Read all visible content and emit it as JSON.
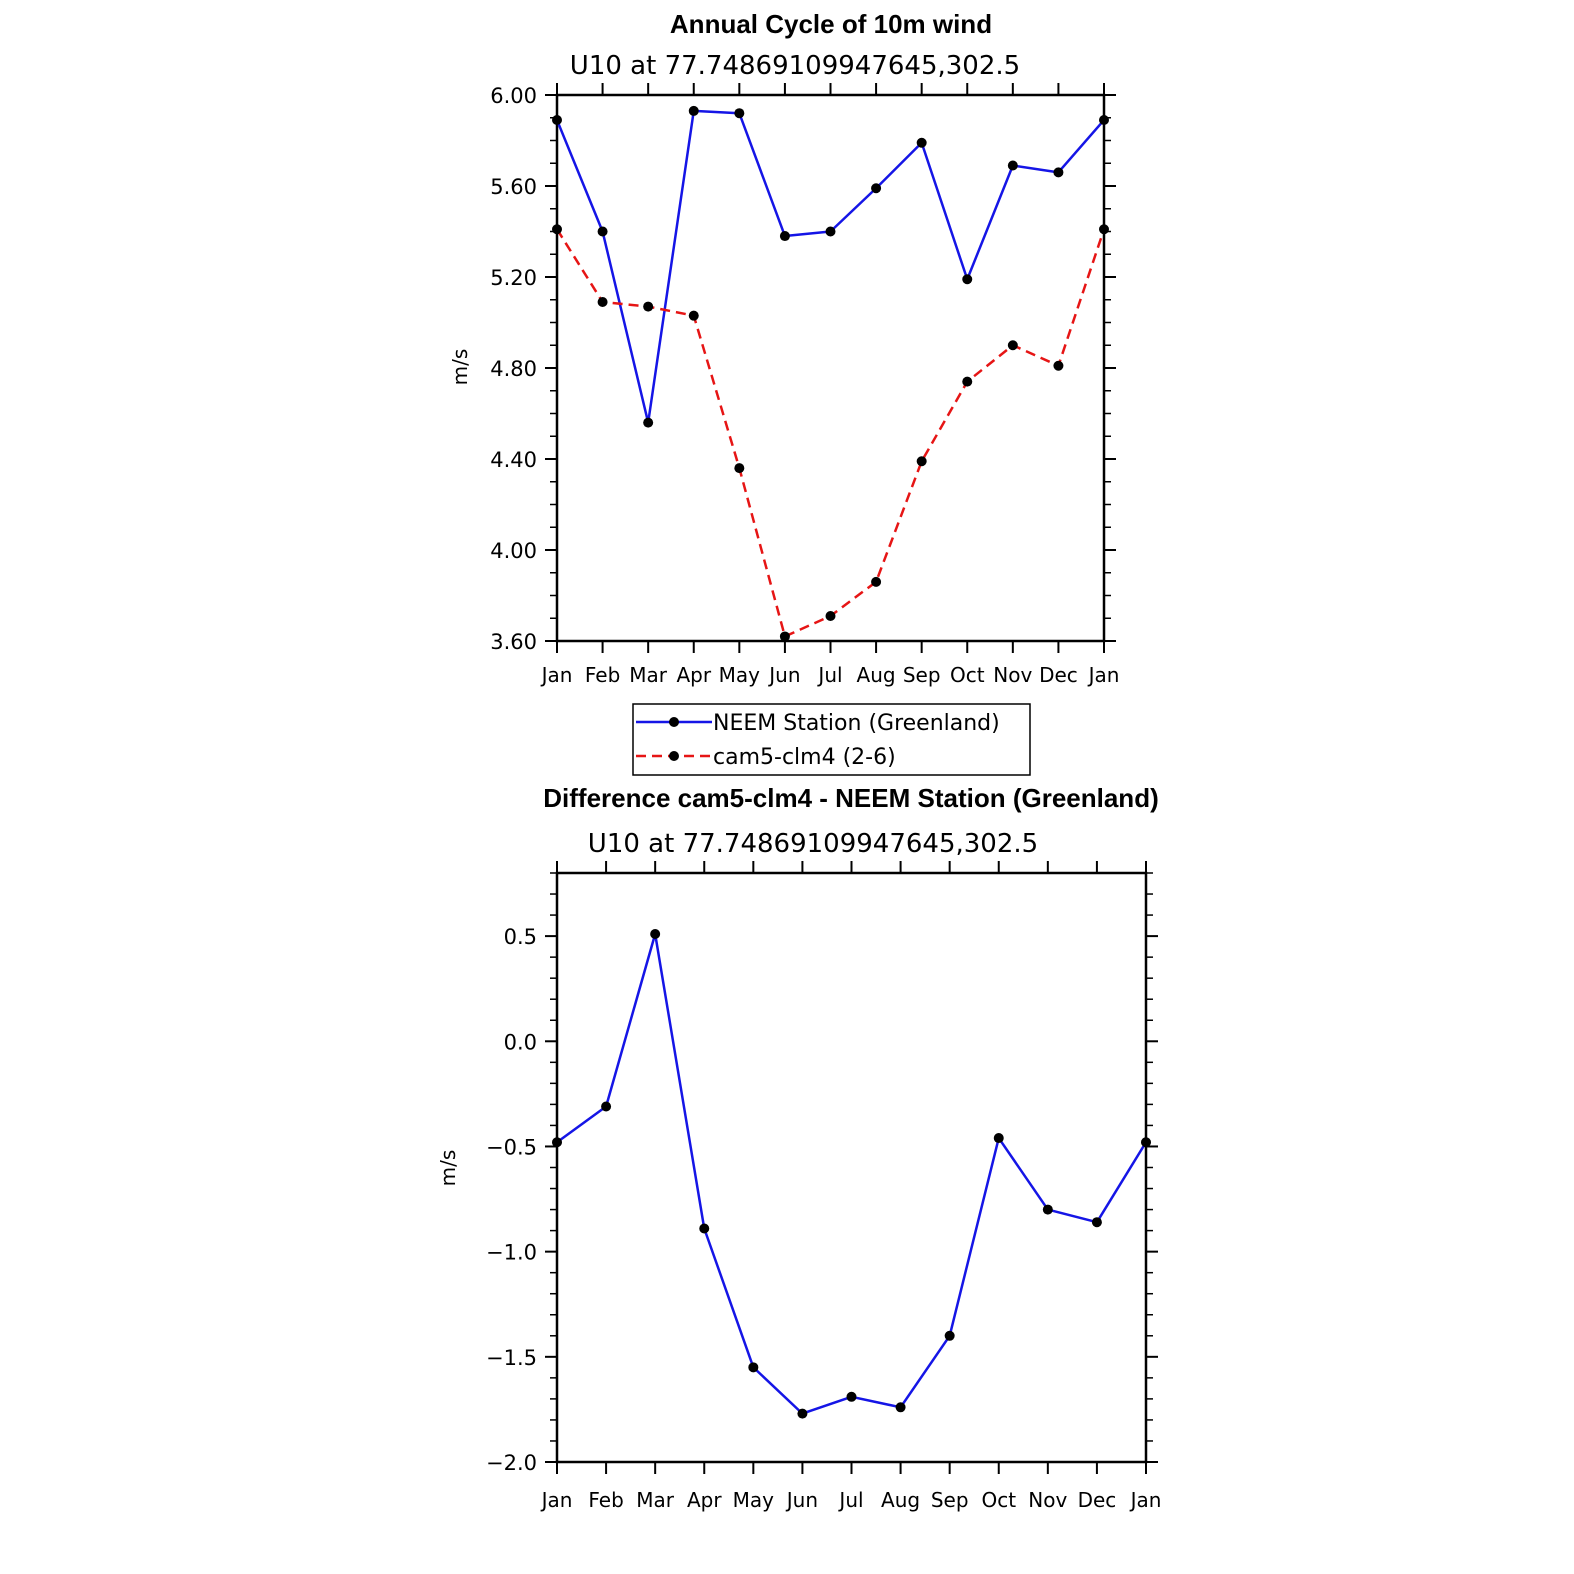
{
  "chart_data": [
    {
      "type": "line",
      "title": "Annual Cycle of 10m wind",
      "subtitle": "U10 at 77.74869109947645,302.5",
      "ylabel": "m/s",
      "xlabel": "",
      "categories": [
        "Jan",
        "Feb",
        "Mar",
        "Apr",
        "May",
        "Jun",
        "Jul",
        "Aug",
        "Sep",
        "Oct",
        "Nov",
        "Dec",
        "Jan"
      ],
      "ylim": [
        3.6,
        6.0
      ],
      "yticks": [
        "6.00",
        "5.60",
        "5.20",
        "4.80",
        "4.40",
        "4.00",
        "3.60"
      ],
      "series": [
        {
          "name": "NEEM Station (Greenland)",
          "color": "#1515e6",
          "style": "solid",
          "values": [
            5.89,
            5.4,
            4.56,
            5.93,
            5.92,
            5.38,
            5.4,
            5.59,
            5.79,
            5.19,
            5.69,
            5.66,
            5.89
          ]
        },
        {
          "name": "cam5-clm4 (2-6)",
          "color": "#e61515",
          "style": "dashed",
          "values": [
            5.41,
            5.09,
            5.07,
            5.03,
            4.36,
            3.62,
            3.71,
            3.86,
            4.39,
            4.74,
            4.9,
            4.81,
            5.41
          ]
        }
      ],
      "legend_position": "bottom-center",
      "grid": false
    },
    {
      "type": "line",
      "title": "Difference cam5-clm4 - NEEM Station (Greenland)",
      "subtitle": "U10 at 77.74869109947645,302.5",
      "ylabel": "m/s",
      "xlabel": "",
      "categories": [
        "Jan",
        "Feb",
        "Mar",
        "Apr",
        "May",
        "Jun",
        "Jul",
        "Aug",
        "Sep",
        "Oct",
        "Nov",
        "Dec",
        "Jan"
      ],
      "ylim": [
        -2.0,
        0.8
      ],
      "yticks": [
        "0.5",
        "0.0",
        "−0.5",
        "−1.0",
        "−1.5",
        "−2.0"
      ],
      "series": [
        {
          "name": "",
          "color": "#1515e6",
          "style": "solid",
          "values": [
            -0.48,
            -0.31,
            0.51,
            -0.89,
            -1.55,
            -1.77,
            -1.69,
            -1.74,
            -1.4,
            -0.46,
            -0.8,
            -0.86,
            -0.48
          ]
        }
      ],
      "grid": false
    }
  ]
}
